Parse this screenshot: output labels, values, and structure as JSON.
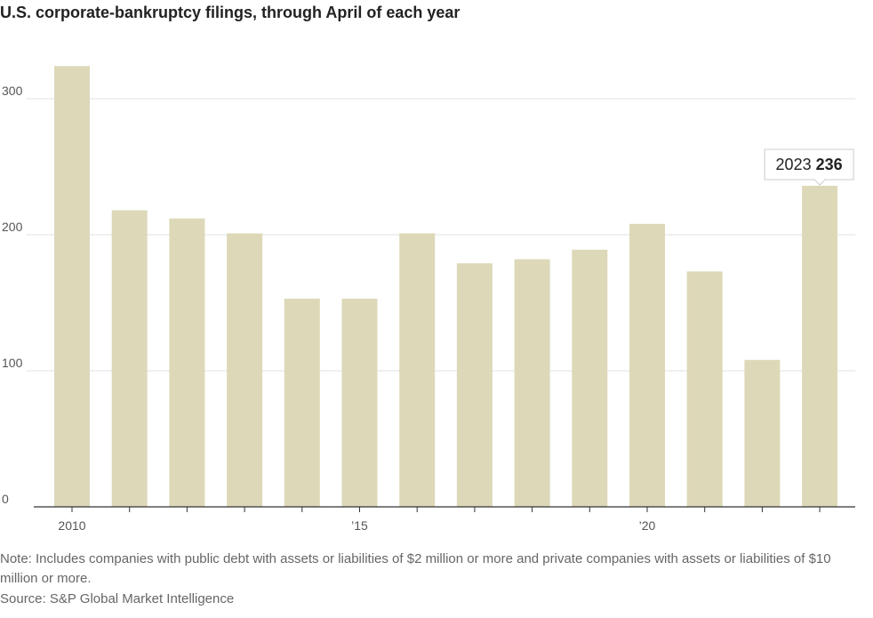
{
  "header": {
    "title": "U.S. corporate-bankruptcy filings, through April of each year"
  },
  "chart_data": {
    "type": "bar",
    "categories": [
      "2010",
      "2011",
      "2012",
      "2013",
      "2014",
      "2015",
      "2016",
      "2017",
      "2018",
      "2019",
      "2020",
      "2021",
      "2022",
      "2023"
    ],
    "values": [
      324,
      218,
      212,
      201,
      153,
      153,
      201,
      179,
      182,
      189,
      208,
      173,
      108,
      236
    ],
    "ylim": [
      0,
      350
    ],
    "yticks": [
      0,
      100,
      200,
      300
    ],
    "xtick_labels": [
      {
        "category": "2010",
        "label": "2010"
      },
      {
        "category": "2015",
        "label": "’15"
      },
      {
        "category": "2020",
        "label": "’20"
      }
    ],
    "annotation": {
      "category": "2023",
      "year": "2023",
      "value": "236"
    },
    "grid": true,
    "colors": {
      "bar": "#ddd8b8",
      "grid": "#e2e2e2",
      "axis": "#333333"
    }
  },
  "footer": {
    "note": "Note: Includes companies with public debt with assets or liabilities of $2 million or more and private companies with assets or liabilities of $10 million or more.",
    "source": "Source: S&P Global Market Intelligence"
  }
}
